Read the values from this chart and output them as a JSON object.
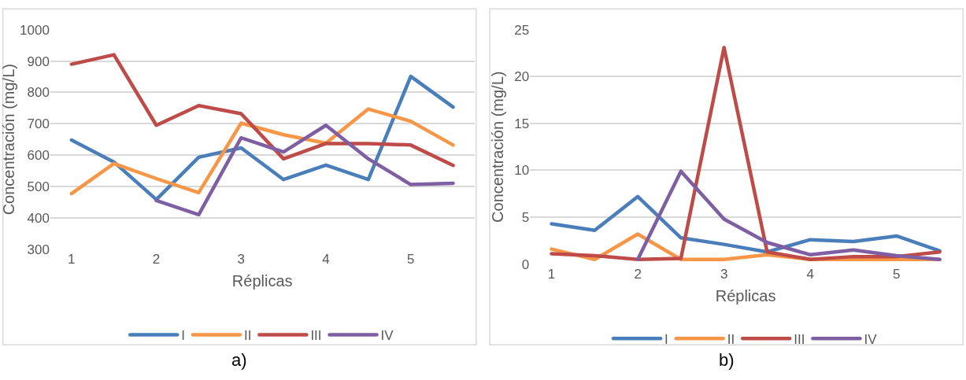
{
  "chart_data": [
    {
      "type": "line",
      "title": "a)",
      "xlabel": "Réplicas",
      "ylabel": "Concentración (mg/L)",
      "x": [
        1,
        1.5,
        2,
        2.5,
        3,
        3.5,
        4,
        4.5,
        5,
        5.5
      ],
      "xlim": [
        0.75,
        5.75
      ],
      "xticks": [
        1,
        2,
        3,
        4,
        5
      ],
      "ylim": [
        300,
        1000
      ],
      "yticks": [
        300,
        400,
        500,
        600,
        700,
        800,
        900,
        1000
      ],
      "grid": "y",
      "legend": "bottom",
      "marker": "none",
      "line_style": "solid",
      "series": [
        {
          "name": "I",
          "color": "#4a7ebb",
          "values": [
            648,
            578,
            458,
            593,
            623,
            522,
            568,
            522,
            851,
            753
          ]
        },
        {
          "name": "II",
          "color": "#f79646",
          "values": [
            477,
            573,
            525,
            480,
            702,
            665,
            638,
            747,
            708,
            632
          ]
        },
        {
          "name": "III",
          "color": "#be4b48",
          "values": [
            890,
            920,
            695,
            758,
            732,
            588,
            637,
            637,
            632,
            567
          ]
        },
        {
          "name": "IV",
          "color": "#7f5fa3",
          "values": [
            null,
            null,
            455,
            410,
            655,
            610,
            695,
            588,
            506,
            510
          ]
        }
      ]
    },
    {
      "type": "line",
      "title": "b)",
      "xlabel": "Réplicas",
      "ylabel": "Concentración (mg/L)",
      "x": [
        1,
        1.5,
        2,
        2.5,
        3,
        3.5,
        4,
        4.5,
        5,
        5.5
      ],
      "xlim": [
        0.75,
        5.75
      ],
      "xticks": [
        1,
        2,
        3,
        4,
        5
      ],
      "ylim": [
        0,
        25
      ],
      "yticks": [
        0,
        5,
        10,
        15,
        20,
        25
      ],
      "grid": "y",
      "legend": "bottom",
      "marker": "none",
      "line_style": "solid",
      "series": [
        {
          "name": "I",
          "color": "#4a7ebb",
          "values": [
            4.3,
            3.6,
            7.2,
            2.8,
            2.1,
            1.3,
            2.6,
            2.4,
            3.0,
            1.4
          ]
        },
        {
          "name": "II",
          "color": "#f79646",
          "values": [
            1.6,
            0.5,
            3.2,
            0.5,
            0.5,
            1.0,
            0.5,
            0.5,
            0.5,
            0.5
          ]
        },
        {
          "name": "III",
          "color": "#be4b48",
          "values": [
            1.1,
            0.9,
            0.5,
            0.6,
            23.1,
            1.3,
            0.5,
            0.8,
            0.8,
            1.3
          ]
        },
        {
          "name": "IV",
          "color": "#7f5fa3",
          "values": [
            null,
            null,
            0.5,
            9.9,
            4.8,
            2.3,
            1.0,
            1.5,
            0.9,
            0.5
          ]
        }
      ]
    }
  ]
}
